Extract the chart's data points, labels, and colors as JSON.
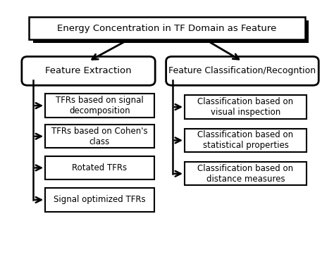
{
  "title": "Energy Concentration in TF Domain as Feature",
  "left_parent": "Feature Extraction",
  "right_parent": "Feature Classification/Recogntion",
  "left_children": [
    "TFRs based on signal\ndecomposition",
    "TFRs based on Cohen's\nclass",
    "Rotated TFRs",
    "Signal optimized TFRs"
  ],
  "right_children": [
    "Classification based on\nvisual inspection",
    "Classification based on\nstatistical properties",
    "Classification based on\ndistance measures"
  ],
  "bg_color": "#ffffff",
  "box_color": "#ffffff",
  "box_edge_color": "#000000",
  "shadow_color": "#000000",
  "text_color": "#000000",
  "arrow_color": "#000000"
}
